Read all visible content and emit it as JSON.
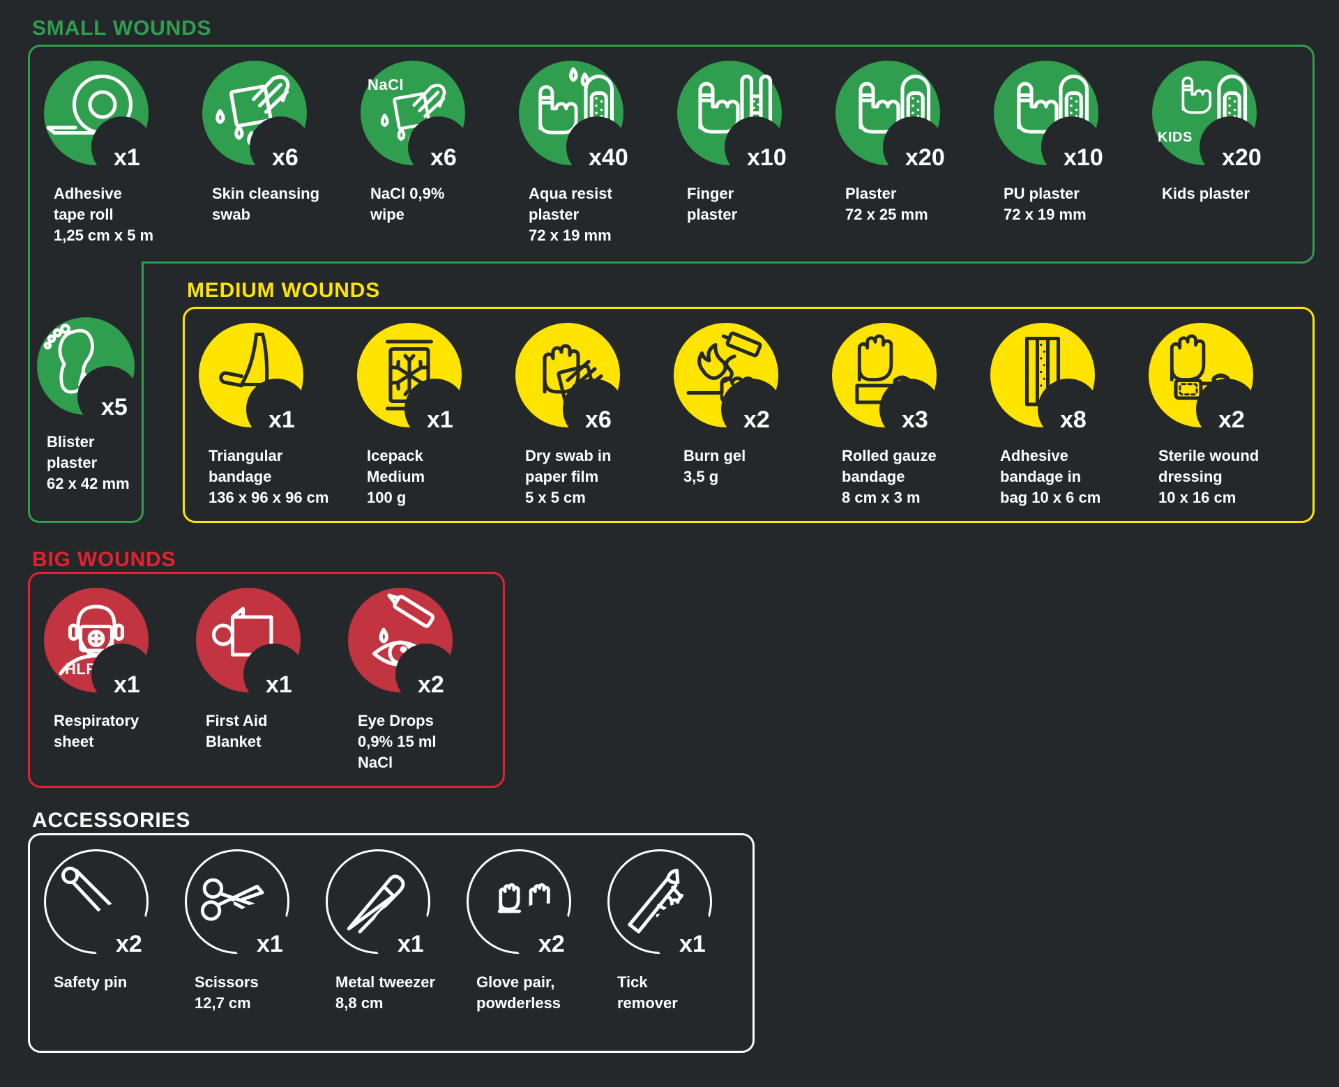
{
  "colors": {
    "background": "#25282B",
    "green": "#2F9E4E",
    "yellow": "#FFE400",
    "red_fill": "#C23440",
    "red_bright": "#E5212E",
    "dark_stroke": "#26292B",
    "text": "#FFFFFF"
  },
  "sections": {
    "small": {
      "title": "SMALL WOUNDS",
      "items": [
        {
          "id": "adhesive-tape-roll",
          "icon": "tape-roll",
          "count": "x1",
          "label_lines": [
            "Adhesive",
            "tape roll",
            "1,25 cm x 5 m"
          ]
        },
        {
          "id": "skin-cleansing-swab",
          "icon": "cleansing-swab",
          "count": "x6",
          "label_lines": [
            "Skin cleansing",
            "swab"
          ]
        },
        {
          "id": "nacl-wipe",
          "icon": "nacl-wipe",
          "count": "x6",
          "label_lines": [
            "NaCl 0,9%",
            "wipe"
          ],
          "icon_text": "NaCl",
          "icon_text_pos": "top-left"
        },
        {
          "id": "aqua-resist-plaster",
          "icon": "aqua-plaster",
          "count": "x40",
          "label_lines": [
            "Aqua resist",
            "plaster",
            "72 x 19 mm"
          ]
        },
        {
          "id": "finger-plaster",
          "icon": "finger-plaster",
          "count": "x10",
          "label_lines": [
            "Finger",
            "plaster"
          ]
        },
        {
          "id": "plaster-72x25",
          "icon": "plaster",
          "count": "x20",
          "label_lines": [
            "Plaster",
            "72 x 25 mm"
          ]
        },
        {
          "id": "pu-plaster",
          "icon": "plaster",
          "count": "x10",
          "label_lines": [
            "PU plaster",
            "72 x 19 mm"
          ]
        },
        {
          "id": "kids-plaster",
          "icon": "kids-plaster",
          "count": "x20",
          "label_lines": [
            "Kids plaster"
          ],
          "icon_text": "KIDS",
          "icon_text_pos": "bottom-left"
        }
      ],
      "extension_item": {
        "id": "blister-plaster",
        "icon": "blister-foot",
        "count": "x5",
        "label_lines": [
          "Blister",
          "plaster",
          "62 x 42 mm"
        ]
      }
    },
    "medium": {
      "title": "MEDIUM WOUNDS",
      "items": [
        {
          "id": "triangular-bandage",
          "icon": "triangular-bandage",
          "count": "x1",
          "label_lines": [
            "Triangular",
            "bandage",
            "136 x 96 x 96 cm"
          ]
        },
        {
          "id": "icepack-medium",
          "icon": "icepack",
          "count": "x1",
          "label_lines": [
            "Icepack",
            "Medium",
            "100 g"
          ]
        },
        {
          "id": "dry-swab",
          "icon": "dry-swab",
          "count": "x6",
          "label_lines": [
            "Dry swab in",
            "paper film",
            "5 x 5 cm"
          ]
        },
        {
          "id": "burn-gel",
          "icon": "burn-gel",
          "count": "x2",
          "label_lines": [
            "Burn gel",
            "3,5 g"
          ]
        },
        {
          "id": "rolled-gauze-bandage",
          "icon": "rolled-gauze",
          "count": "x3",
          "label_lines": [
            "Rolled gauze",
            "bandage",
            "8 cm x 3 m"
          ]
        },
        {
          "id": "adhesive-bandage-bag",
          "icon": "adhesive-bag",
          "count": "x8",
          "label_lines": [
            "Adhesive",
            "bandage in",
            "bag 10 x 6 cm"
          ]
        },
        {
          "id": "sterile-wound-dressing",
          "icon": "sterile-dressing",
          "count": "x2",
          "label_lines": [
            "Sterile wound",
            "dressing",
            "10 x 16 cm"
          ]
        }
      ]
    },
    "big": {
      "title": "BIG WOUNDS",
      "items": [
        {
          "id": "respiratory-sheet",
          "icon": "respiratory-sheet",
          "count": "x1",
          "label_lines": [
            "Respiratory",
            "sheet"
          ],
          "icon_text": "HLR",
          "icon_text_pos": "bottom-mid"
        },
        {
          "id": "first-aid-blanket",
          "icon": "first-aid-blanket",
          "count": "x1",
          "label_lines": [
            "First Aid",
            "Blanket"
          ]
        },
        {
          "id": "eye-drops",
          "icon": "eye-drops",
          "count": "x2",
          "label_lines": [
            "Eye Drops",
            "0,9% 15 ml",
            "NaCl"
          ]
        }
      ]
    },
    "accessories": {
      "title": "ACCESSORIES",
      "items": [
        {
          "id": "safety-pin",
          "icon": "safety-pin",
          "count": "x2",
          "label_lines": [
            "Safety pin"
          ]
        },
        {
          "id": "scissors",
          "icon": "scissors",
          "count": "x1",
          "label_lines": [
            "Scissors",
            "12,7 cm"
          ]
        },
        {
          "id": "metal-tweezer",
          "icon": "tweezer",
          "count": "x1",
          "label_lines": [
            "Metal tweezer",
            "8,8 cm"
          ]
        },
        {
          "id": "glove-pair",
          "icon": "gloves",
          "count": "x2",
          "label_lines": [
            "Glove pair,",
            "powderless"
          ]
        },
        {
          "id": "tick-remover",
          "icon": "tick-remover",
          "count": "x1",
          "label_lines": [
            "Tick",
            "remover"
          ]
        }
      ]
    }
  }
}
